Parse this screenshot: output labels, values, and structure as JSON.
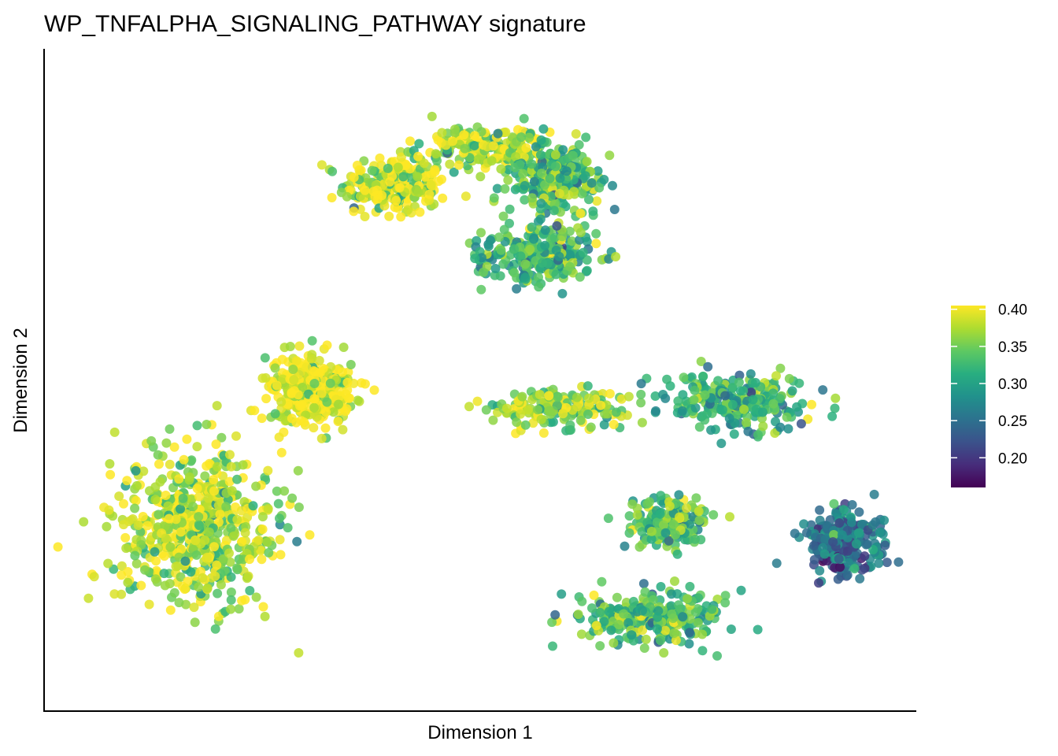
{
  "chart_data": {
    "type": "scatter",
    "title": "WP_TNFALPHA_SIGNALING_PATHWAY signature",
    "xlabel": "Dimension 1",
    "ylabel": "Dimension 2",
    "x_ticks_shown": false,
    "y_ticks_shown": false,
    "grid": false,
    "legend": {
      "placement": "right",
      "type": "continuous-colorbar",
      "colormap": "viridis",
      "range": [
        0.16,
        0.405
      ],
      "ticks": [
        0.4,
        0.35,
        0.3,
        0.25,
        0.2
      ],
      "tick_labels": [
        "0.40",
        "0.35",
        "0.30",
        "0.25",
        "0.20"
      ]
    },
    "xlim": [
      0,
      100
    ],
    "ylim": [
      0,
      100
    ],
    "clusters": [
      {
        "name": "top-left-arm",
        "center": [
          40,
          80
        ],
        "spread": [
          4.0,
          3.0
        ],
        "n": 260,
        "mean_value": 0.385
      },
      {
        "name": "top-arch",
        "center": [
          50,
          86
        ],
        "spread": [
          5.0,
          2.2
        ],
        "n": 200,
        "mean_value": 0.375
      },
      {
        "name": "top-right-arm",
        "center": [
          59,
          81
        ],
        "spread": [
          4.0,
          4.0
        ],
        "n": 260,
        "mean_value": 0.335
      },
      {
        "name": "top-lower-blob",
        "center": [
          57,
          69
        ],
        "spread": [
          4.5,
          3.0
        ],
        "n": 280,
        "mean_value": 0.325
      },
      {
        "name": "left-upper-blob",
        "center": [
          30,
          48
        ],
        "spread": [
          3.5,
          3.5
        ],
        "n": 320,
        "mean_value": 0.4
      },
      {
        "name": "left-lower-body",
        "center": [
          17,
          26
        ],
        "spread": [
          6.5,
          8.5
        ],
        "n": 620,
        "mean_value": 0.375
      },
      {
        "name": "middle-band-left",
        "center": [
          59,
          45
        ],
        "spread": [
          5.5,
          1.8
        ],
        "n": 170,
        "mean_value": 0.36
      },
      {
        "name": "middle-band-right",
        "center": [
          80,
          46
        ],
        "spread": [
          6.0,
          2.8
        ],
        "n": 250,
        "mean_value": 0.32
      },
      {
        "name": "right-dense-cluster",
        "center": [
          93,
          24
        ],
        "spread": [
          3.0,
          3.2
        ],
        "n": 260,
        "mean_value": 0.25
      },
      {
        "name": "lower-right-upper",
        "center": [
          72,
          27
        ],
        "spread": [
          3.0,
          3.0
        ],
        "n": 180,
        "mean_value": 0.335
      },
      {
        "name": "lower-right-lower",
        "center": [
          70,
          12
        ],
        "spread": [
          5.5,
          3.0
        ],
        "n": 260,
        "mean_value": 0.335
      }
    ]
  }
}
